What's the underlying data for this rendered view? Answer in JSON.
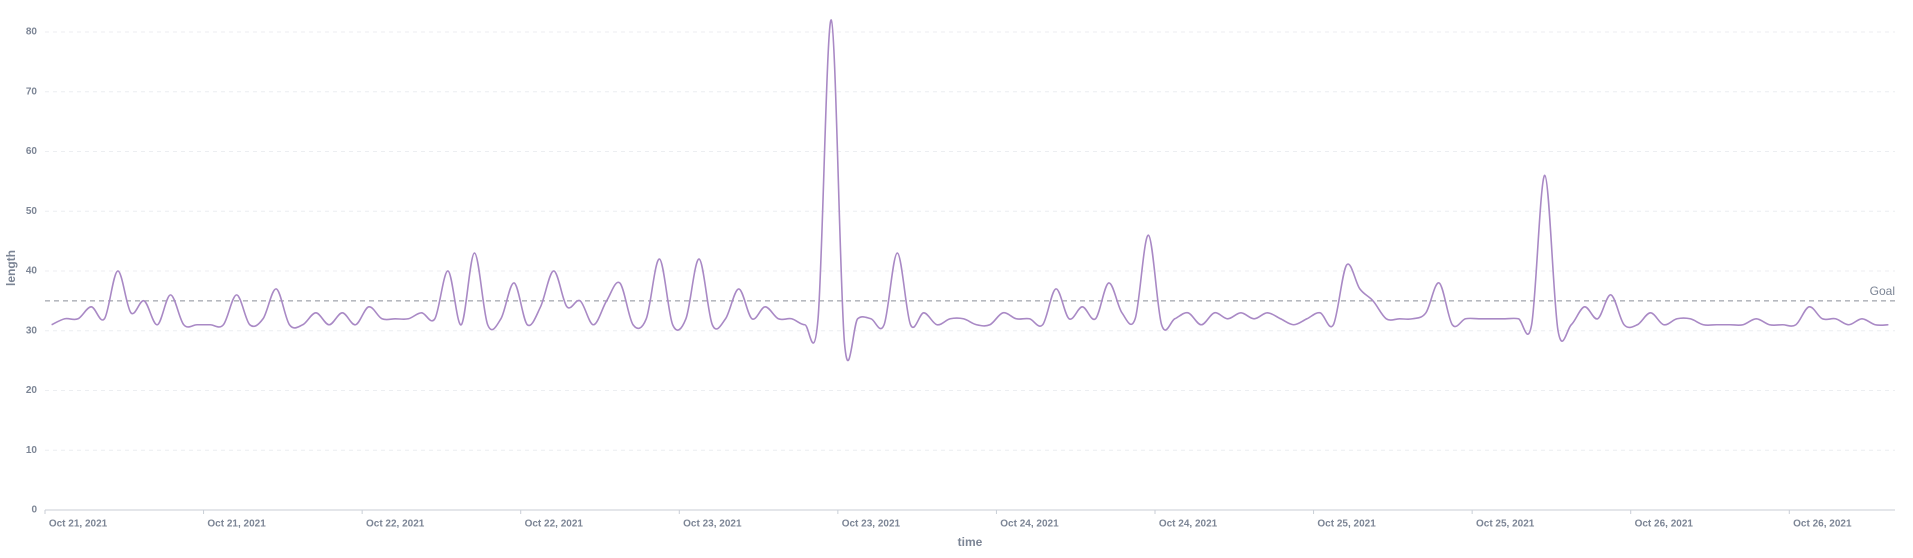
{
  "chart_data": {
    "type": "line",
    "x_label": "time",
    "y_label": "length",
    "categories": [
      null,
      null,
      "Oct 21, 2021",
      null,
      null,
      null,
      null,
      null,
      null,
      null,
      null,
      null,
      null,
      null,
      "Oct 21, 2021",
      null,
      null,
      null,
      null,
      null,
      null,
      null,
      null,
      null,
      null,
      null,
      "Oct 22, 2021",
      null,
      null,
      null,
      null,
      null,
      null,
      null,
      null,
      null,
      null,
      null,
      "Oct 22, 2021",
      null,
      null,
      null,
      null,
      null,
      null,
      null,
      null,
      null,
      null,
      null,
      "Oct 23, 2021",
      null,
      null,
      null,
      null,
      null,
      null,
      null,
      null,
      null,
      null,
      null,
      "Oct 23, 2021",
      null,
      null,
      null,
      null,
      null,
      null,
      null,
      null,
      null,
      null,
      null,
      "Oct 24, 2021",
      null,
      null,
      null,
      null,
      null,
      null,
      null,
      null,
      null,
      null,
      null,
      "Oct 24, 2021",
      null,
      null,
      null,
      null,
      null,
      null,
      null,
      null,
      null,
      null,
      null,
      "Oct 25, 2021",
      null,
      null,
      null,
      null,
      null,
      null,
      null,
      null,
      null,
      null,
      null,
      "Oct 25, 2021",
      null,
      null,
      null,
      null,
      null,
      null,
      null,
      null,
      null,
      null,
      null,
      "Oct 26, 2021",
      null,
      null,
      null,
      null,
      null,
      null,
      null,
      null,
      null,
      null,
      null,
      "Oct 26, 2021",
      null,
      null,
      null,
      null,
      null
    ],
    "series": [
      {
        "name": "length",
        "color": "#a989c5",
        "values": [
          31,
          32,
          32,
          34,
          32,
          40,
          33,
          35,
          31,
          36,
          31,
          31,
          31,
          31,
          36,
          31,
          32,
          37,
          31,
          31,
          33,
          31,
          33,
          31,
          34,
          32,
          32,
          32,
          33,
          32,
          40,
          31,
          43,
          31,
          32,
          38,
          31,
          34,
          40,
          34,
          35,
          31,
          35,
          38,
          31,
          32,
          42,
          31,
          32,
          42,
          31,
          32,
          37,
          32,
          34,
          32,
          32,
          31,
          32,
          82,
          28,
          32,
          32,
          31,
          43,
          31,
          33,
          31,
          32,
          32,
          31,
          31,
          33,
          32,
          32,
          31,
          37,
          32,
          34,
          32,
          38,
          33,
          32,
          46,
          31,
          32,
          33,
          31,
          33,
          32,
          33,
          32,
          33,
          32,
          31,
          32,
          33,
          31,
          41,
          37,
          35,
          32,
          32,
          32,
          33,
          38,
          31,
          32,
          32,
          32,
          32,
          32,
          31,
          56,
          30,
          31,
          34,
          32,
          36,
          31,
          31,
          33,
          31,
          32,
          32,
          31,
          31,
          31,
          31,
          32,
          31,
          31,
          31,
          34,
          32,
          32,
          31,
          32,
          31,
          31
        ]
      }
    ],
    "goal": {
      "label": "Goal",
      "value": 35
    },
    "ylim": [
      0,
      82
    ],
    "yticks": [
      0,
      10,
      20,
      30,
      40,
      50,
      60,
      70,
      80
    ],
    "grid": true
  }
}
